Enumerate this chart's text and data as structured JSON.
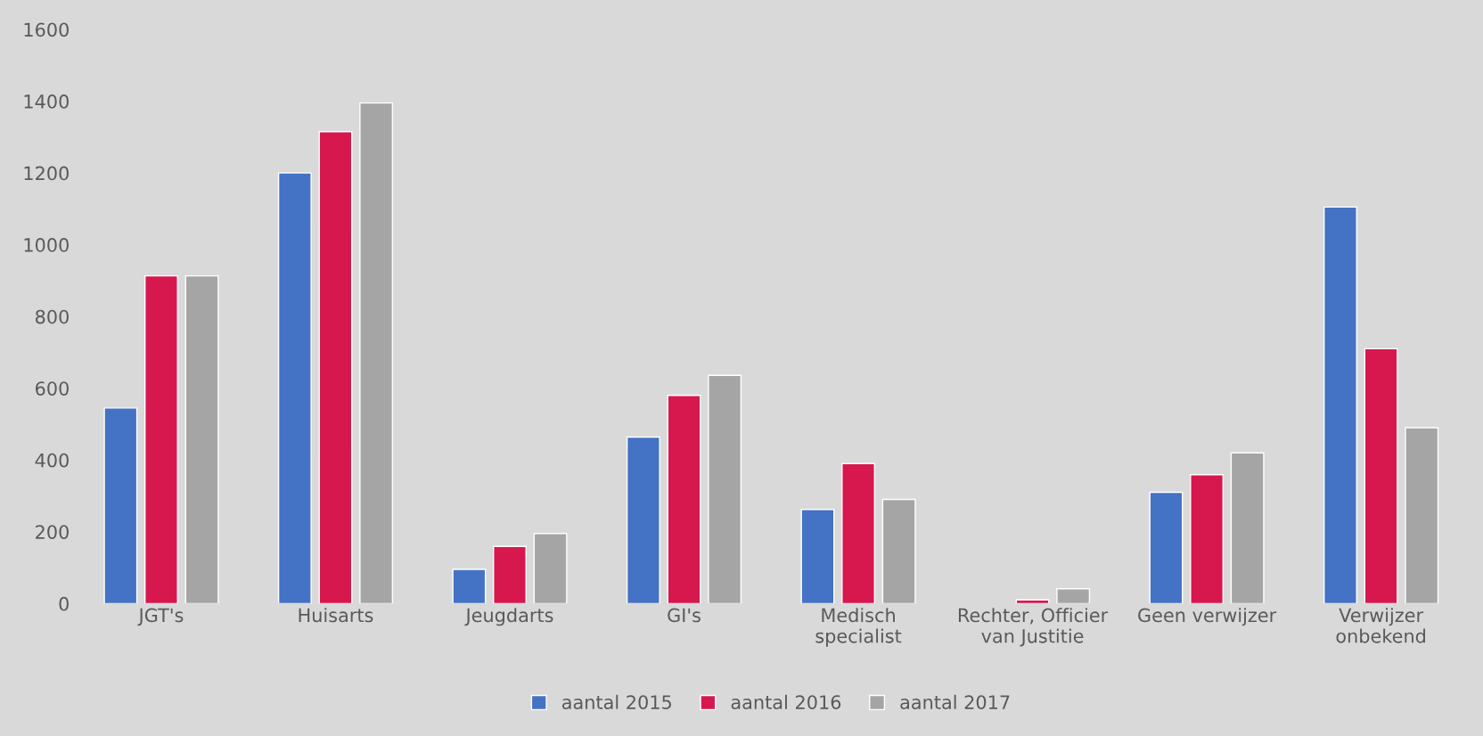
{
  "chart_data": {
    "type": "bar",
    "categories": [
      "JGT's",
      "Huisarts",
      "Jeugdarts",
      "GI's",
      "Medisch\nspecialist",
      "Rechter, Officier\nvan Justitie",
      "Geen verwijzer",
      "Verwijzer\nonbekend"
    ],
    "series": [
      {
        "name": "aantal 2015",
        "color": "#4472c4",
        "values": [
          545,
          1200,
          95,
          464,
          262,
          null,
          310,
          1105
        ]
      },
      {
        "name": "aantal 2016",
        "color": "#d6184f",
        "values": [
          913,
          1315,
          159,
          580,
          390,
          10,
          359,
          710
        ]
      },
      {
        "name": "aantal 2017",
        "color": "#a5a5a5",
        "values": [
          913,
          1395,
          195,
          636,
          290,
          41,
          420,
          490
        ]
      }
    ],
    "ylim": [
      0,
      1600
    ],
    "yticks": [
      0,
      200,
      400,
      600,
      800,
      1000,
      1200,
      1400,
      1600
    ],
    "grid": false,
    "legend": "bottom"
  }
}
